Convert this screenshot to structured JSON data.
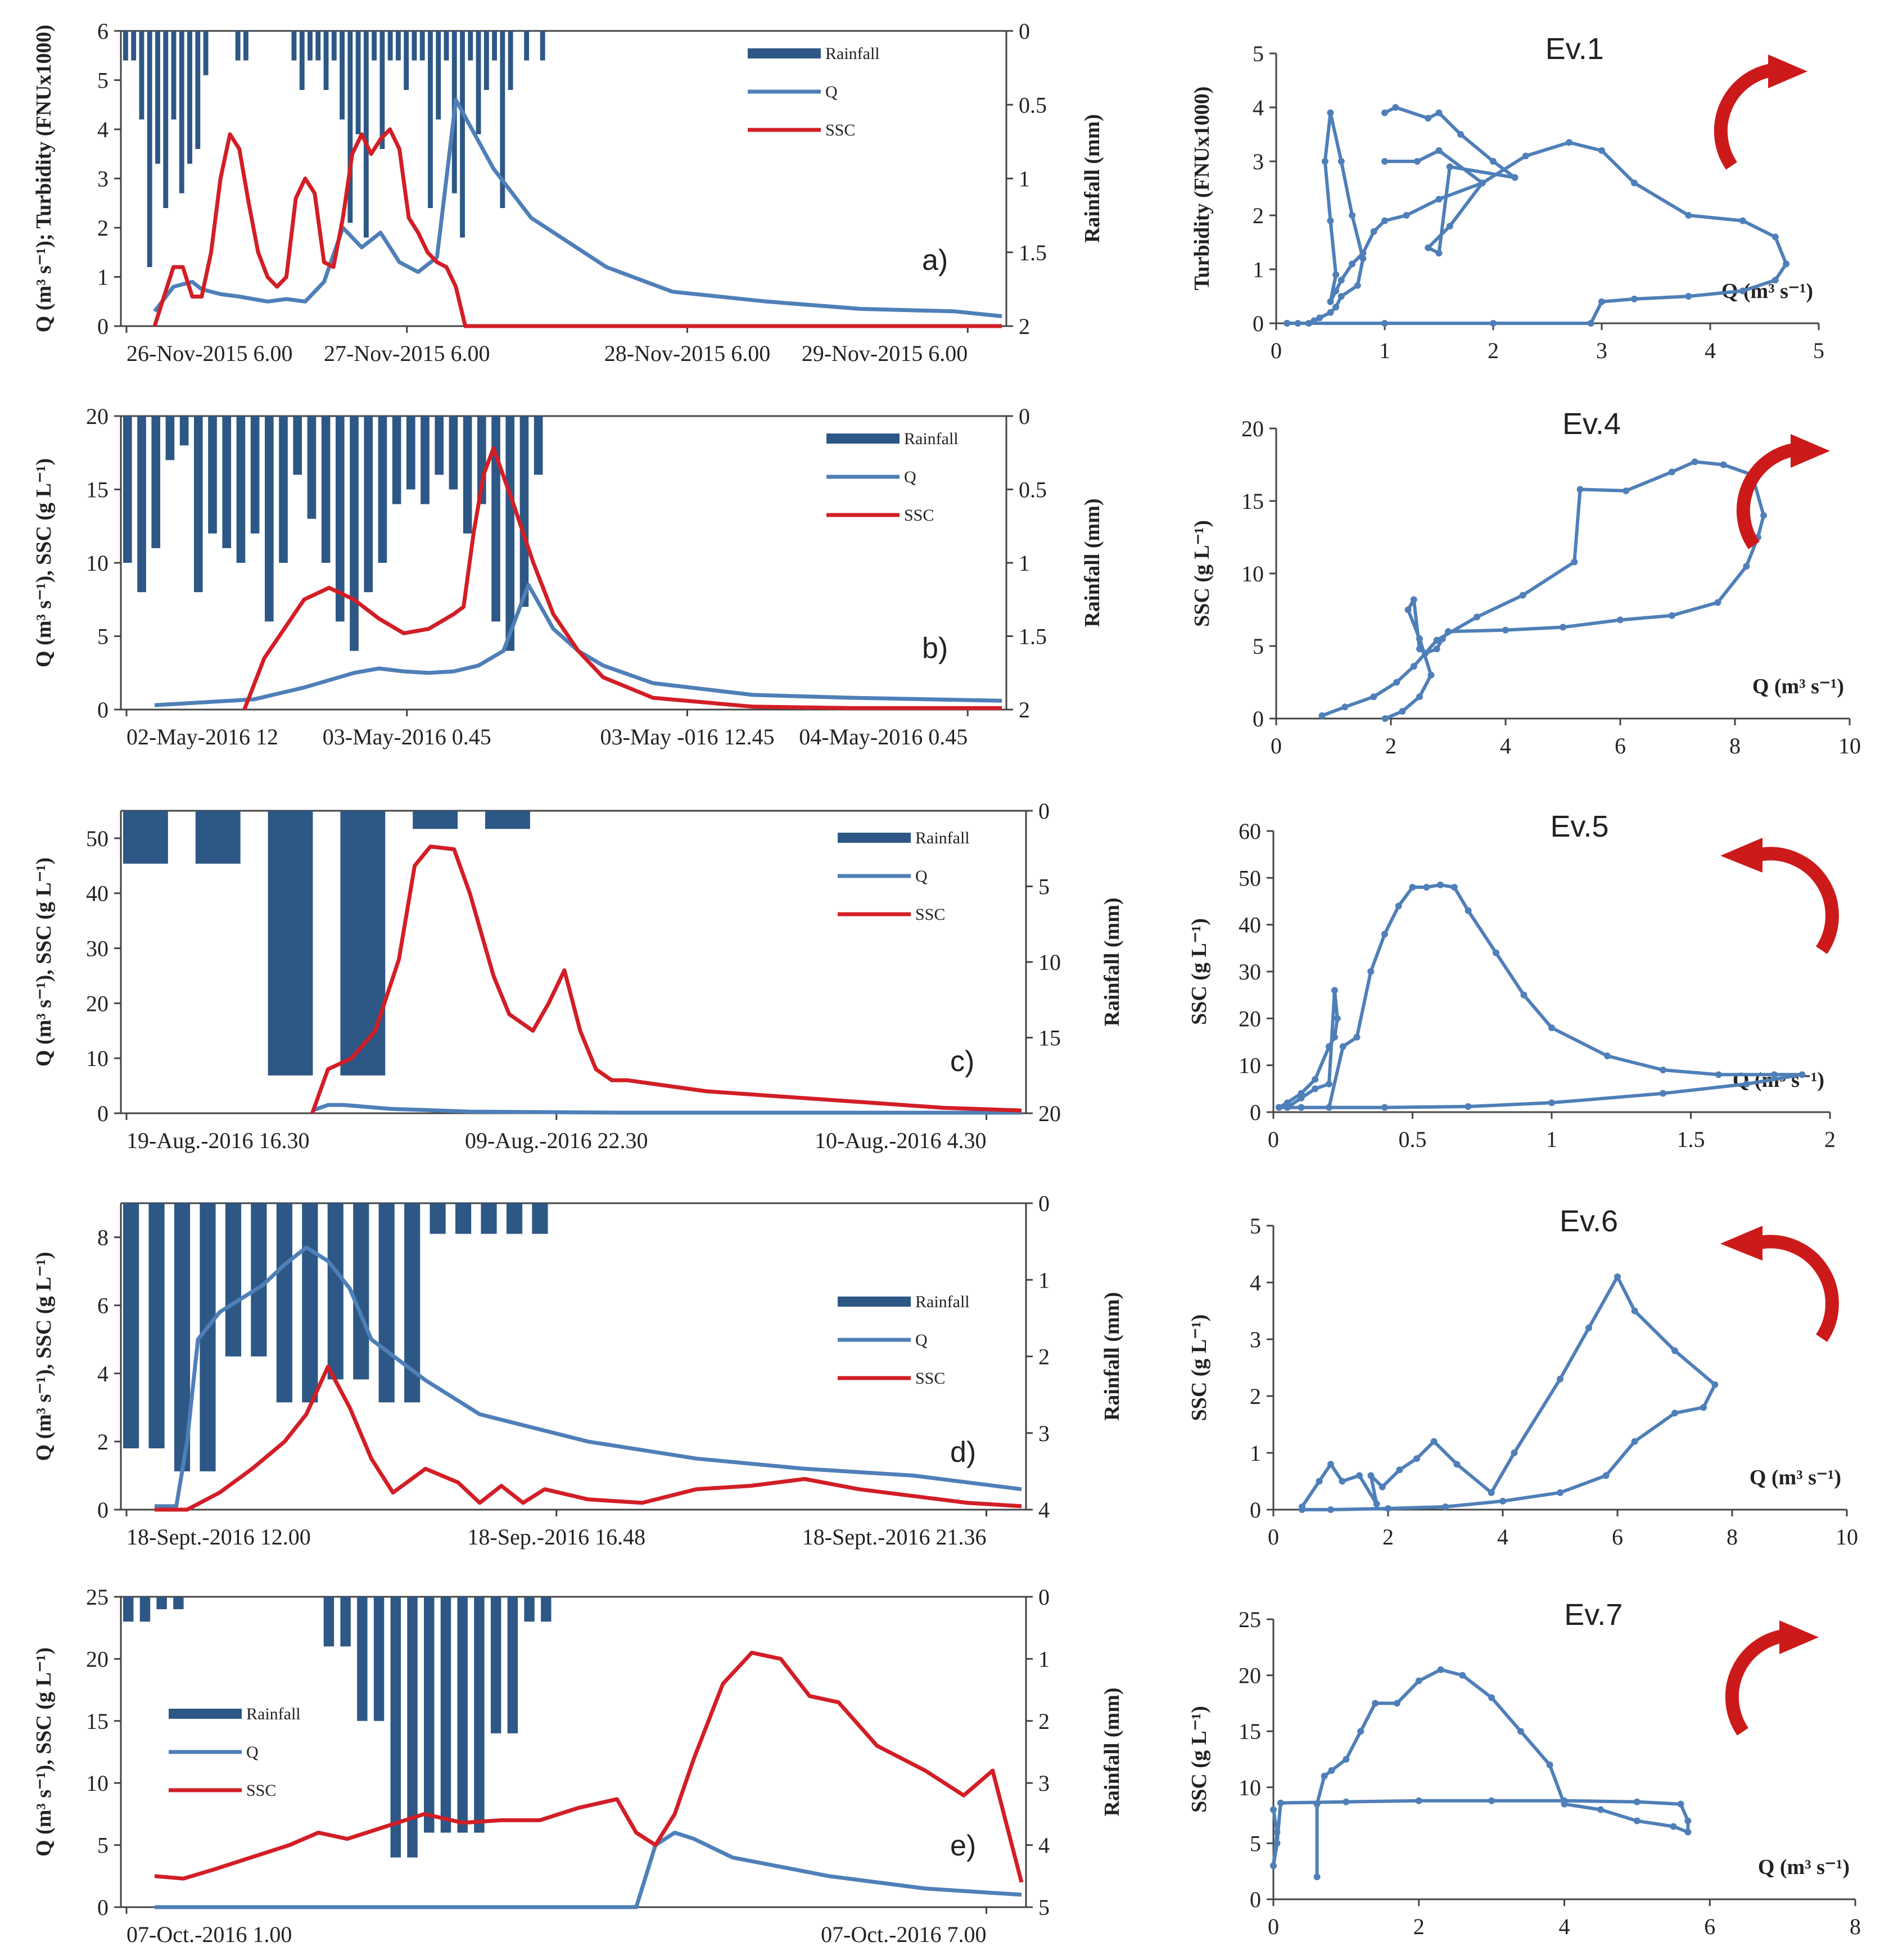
{
  "colors": {
    "rain": "#2d5785",
    "q": "#4f7fb8",
    "ssc": "#d21e26",
    "arrow": "#cc1a1a",
    "axis": "#444444"
  },
  "chart_data": [
    {
      "type": "bar+line",
      "panel_label": "a)",
      "ylabel": "Q (m³ s⁻¹); Turbidity (FNUx1000)",
      "y2label": "Rainfall (mm)",
      "ylim": [
        0,
        6
      ],
      "y2lim": [
        0,
        2
      ],
      "yticks": [
        "0",
        "1",
        "2",
        "3",
        "4",
        "5",
        "6"
      ],
      "y2ticks": [
        "0",
        "0.5",
        "1",
        "1.5",
        "2"
      ],
      "xticks": [
        "26-Nov-2015 6.00",
        "27-Nov-2015 6.00",
        "28-Nov-2015 6.00",
        "29-Nov-2015 6.00"
      ],
      "legend": [
        "Rainfall",
        "Q",
        "SSC"
      ],
      "rain": [
        0.2,
        0.2,
        0.6,
        1.6,
        0.9,
        1.2,
        0.6,
        1.1,
        0.9,
        0.8,
        0.3,
        0,
        0,
        0,
        0.2,
        0.2,
        0,
        0,
        0,
        0,
        0,
        0.2,
        0.4,
        0.2,
        0.2,
        0.4,
        0.2,
        0.6,
        1.3,
        0.7,
        1.4,
        0.2,
        0.8,
        0.2,
        0.2,
        0.4,
        0.2,
        0.2,
        1.2,
        0.6,
        0.2,
        1.1,
        1.4,
        0.2,
        0.7,
        0.4,
        0.2,
        1.2,
        0.4,
        0,
        0.2,
        0,
        0.2
      ],
      "q_x": [
        0,
        4,
        8,
        10,
        14,
        18,
        24,
        28,
        32,
        36,
        40,
        44,
        48,
        52,
        56,
        60,
        64,
        72,
        80,
        96,
        110,
        130,
        150,
        170,
        180
      ],
      "q": [
        0.3,
        0.8,
        0.9,
        0.75,
        0.65,
        0.6,
        0.5,
        0.55,
        0.5,
        0.9,
        2.0,
        1.6,
        1.9,
        1.3,
        1.1,
        1.4,
        4.6,
        3.2,
        2.2,
        1.2,
        0.7,
        0.5,
        0.35,
        0.3,
        0.2
      ],
      "ssc_x": [
        0,
        2,
        4,
        6,
        8,
        10,
        12,
        14,
        16,
        18,
        20,
        22,
        24,
        26,
        28,
        30,
        32,
        34,
        36,
        38,
        40,
        42,
        44,
        46,
        48,
        50,
        52,
        54,
        56,
        58,
        60,
        62,
        64,
        66,
        180
      ],
      "ssc": [
        0,
        0.6,
        1.2,
        1.2,
        0.6,
        0.6,
        1.5,
        3.0,
        3.9,
        3.6,
        2.5,
        1.5,
        1.0,
        0.8,
        1.0,
        2.6,
        3.0,
        2.7,
        1.3,
        1.2,
        2.2,
        3.5,
        3.9,
        3.5,
        3.8,
        4.0,
        3.6,
        2.2,
        1.9,
        1.5,
        1.3,
        1.2,
        0.8,
        0.0,
        0.0
      ]
    },
    {
      "type": "bar+line",
      "panel_label": "b)",
      "ylabel": "Q (m³ s⁻¹), SSC (g L⁻¹)",
      "y2label": "Rainfall (mm)",
      "ylim": [
        0,
        20
      ],
      "y2lim": [
        0,
        2
      ],
      "yticks": [
        "0",
        "5",
        "10",
        "15",
        "20"
      ],
      "y2ticks": [
        "0",
        "0.5",
        "1",
        "1.5",
        "2"
      ],
      "xticks": [
        "02-May-2016 12",
        "03-May-2016 0.45",
        "03-May -016 12.45",
        "04-May-2016 0.45"
      ],
      "legend": [
        "Rainfall",
        "Q",
        "SSC"
      ],
      "rain": [
        1.0,
        1.2,
        0.9,
        0.3,
        0.2,
        1.2,
        0.8,
        0.9,
        1.0,
        0.8,
        1.4,
        1.0,
        0.4,
        0.7,
        1.0,
        1.4,
        1.6,
        1.2,
        1.0,
        0.6,
        0.5,
        0.6,
        0.4,
        0.5,
        0.8,
        0.6,
        1.4,
        1.6,
        1.3,
        0.4
      ],
      "q_x": [
        0,
        10,
        20,
        30,
        40,
        45,
        50,
        55,
        60,
        65,
        70,
        75,
        80,
        85,
        90,
        100,
        120,
        140,
        170
      ],
      "q": [
        0.3,
        0.5,
        0.7,
        1.5,
        2.5,
        2.8,
        2.6,
        2.5,
        2.6,
        3.0,
        4.0,
        8.5,
        5.5,
        4.0,
        3.0,
        1.8,
        1.0,
        0.8,
        0.6
      ],
      "ssc_x": [
        18,
        22,
        26,
        30,
        35,
        40,
        45,
        50,
        55,
        60,
        62,
        64,
        66,
        68,
        72,
        76,
        80,
        85,
        90,
        100,
        120,
        140,
        160,
        170
      ],
      "ssc": [
        0,
        3.5,
        5.5,
        7.5,
        8.3,
        7.5,
        6.2,
        5.2,
        5.5,
        6.5,
        7.0,
        12.0,
        16.0,
        17.8,
        14.0,
        10.0,
        6.5,
        4.0,
        2.2,
        0.8,
        0.2,
        0.1,
        0.1,
        0.1
      ]
    },
    {
      "type": "bar+line",
      "panel_label": "c)",
      "ylabel": "Q (m³ s⁻¹), SSC (g L⁻¹)",
      "y2label": "Rainfall (mm)",
      "ylim": [
        0,
        55
      ],
      "y2lim": [
        0,
        20
      ],
      "yticks": [
        "0",
        "10",
        "20",
        "30",
        "40",
        "50"
      ],
      "y2ticks": [
        "0",
        "5",
        "10",
        "15",
        "20"
      ],
      "xticks": [
        "19-Aug.-2016 16.30",
        "09-Aug.-2016 22.30",
        "10-Aug.-2016 4.30"
      ],
      "legend": [
        "Rainfall",
        "Q",
        "SSC"
      ],
      "rain": [
        3.5,
        3.5,
        17.5,
        17.5,
        1.2,
        1.2
      ],
      "q_x": [
        40,
        44,
        48,
        60,
        80,
        120,
        160,
        220
      ],
      "q": [
        0.5,
        1.5,
        1.5,
        0.8,
        0.3,
        0.1,
        0.1,
        0.1
      ],
      "ssc_x": [
        40,
        44,
        50,
        56,
        62,
        66,
        70,
        76,
        80,
        86,
        90,
        96,
        100,
        104,
        108,
        112,
        116,
        120,
        130,
        140,
        160,
        180,
        200,
        220
      ],
      "ssc": [
        0,
        8,
        10,
        15,
        28,
        45,
        48.5,
        48,
        40,
        25,
        18,
        15,
        20,
        26,
        15,
        8,
        6,
        6,
        5,
        4,
        3,
        2,
        1,
        0.5
      ]
    },
    {
      "type": "bar+line",
      "panel_label": "d)",
      "ylabel": "Q (m³ s⁻¹), SSC (g L⁻¹)",
      "y2label": "Rainfall (mm)",
      "ylim": [
        0,
        9
      ],
      "y2lim": [
        0,
        4
      ],
      "yticks": [
        "0",
        "2",
        "4",
        "6",
        "8"
      ],
      "y2ticks": [
        "0",
        "1",
        "2",
        "3",
        "4"
      ],
      "xticks": [
        "18-Sept.-2016 12.00",
        "18-Sep.-2016 16.48",
        "18-Sept.-2016 21.36"
      ],
      "legend": [
        "Rainfall",
        "Q",
        "SSC"
      ],
      "rain": [
        3.2,
        3.2,
        3.5,
        3.5,
        2.0,
        2.0,
        2.6,
        2.6,
        2.3,
        2.3,
        2.6,
        2.6,
        0.4,
        0.4,
        0.4,
        0.4,
        0.4
      ],
      "q_x": [
        0,
        4,
        6,
        8,
        12,
        16,
        20,
        24,
        28,
        32,
        36,
        40,
        50,
        60,
        80,
        100,
        120,
        140,
        160
      ],
      "q": [
        0.1,
        0.1,
        2.0,
        5.0,
        5.8,
        6.2,
        6.6,
        7.2,
        7.7,
        7.3,
        6.5,
        5.0,
        3.8,
        2.8,
        2.0,
        1.5,
        1.2,
        1.0,
        0.6
      ],
      "ssc_x": [
        0,
        6,
        12,
        18,
        24,
        28,
        32,
        36,
        40,
        44,
        50,
        56,
        60,
        64,
        68,
        72,
        80,
        90,
        100,
        110,
        120,
        130,
        140,
        150,
        160
      ],
      "ssc": [
        0,
        0,
        0.5,
        1.2,
        2.0,
        2.8,
        4.2,
        3.0,
        1.5,
        0.5,
        1.2,
        0.8,
        0.2,
        0.7,
        0.2,
        0.6,
        0.3,
        0.2,
        0.6,
        0.7,
        0.9,
        0.6,
        0.4,
        0.2,
        0.1
      ]
    },
    {
      "type": "bar+line",
      "panel_label": "e)",
      "ylabel": "Q (m³ s⁻¹), SSC (g L⁻¹)",
      "y2label": "Rainfall (mm)",
      "ylim": [
        0,
        25
      ],
      "y2lim": [
        0,
        5
      ],
      "yticks": [
        "0",
        "5",
        "10",
        "15",
        "20",
        "25"
      ],
      "y2ticks": [
        "0",
        "1",
        "2",
        "3",
        "4",
        "5"
      ],
      "xticks": [
        "07-Oct.-2016 1.00",
        "07-Oct.-2016 7.00"
      ],
      "legend": [
        "Rainfall",
        "Q",
        "SSC"
      ],
      "rain": [
        0.4,
        0.4,
        0.2,
        0.2,
        0,
        0,
        0,
        0,
        0,
        0,
        0,
        0,
        0.8,
        0.8,
        2.0,
        2.0,
        4.2,
        4.2,
        3.8,
        3.8,
        3.8,
        3.8,
        2.2,
        2.2,
        0.4,
        0.4
      ],
      "q_x": [
        0,
        40,
        80,
        100,
        104,
        108,
        112,
        120,
        140,
        160,
        180
      ],
      "q": [
        0,
        0,
        0,
        0,
        5,
        6,
        5.5,
        4,
        2.5,
        1.5,
        1
      ],
      "ssc_x": [
        0,
        6,
        12,
        20,
        28,
        34,
        40,
        48,
        56,
        64,
        72,
        80,
        88,
        96,
        100,
        104,
        108,
        112,
        118,
        124,
        130,
        136,
        142,
        150,
        160,
        168,
        174,
        180
      ],
      "ssc": [
        2.5,
        2.3,
        3.0,
        4.0,
        5.0,
        6.0,
        5.5,
        6.5,
        7.5,
        6.8,
        7.0,
        7.0,
        8.0,
        8.7,
        6.0,
        5.0,
        7.5,
        12,
        18,
        20.5,
        20,
        17,
        16.5,
        13,
        11,
        9,
        11,
        2
      ]
    },
    {
      "type": "hysteresis",
      "title": "Ev.1",
      "xlabel": "Q (m³ s⁻¹)",
      "ylabel": "Turbidity (FNUx1000)",
      "xlim": [
        0,
        5
      ],
      "ylim": [
        0,
        5
      ],
      "xticks": [
        "0",
        "1",
        "2",
        "3",
        "4",
        "5"
      ],
      "yticks": [
        "0",
        "1",
        "2",
        "3",
        "4",
        "5"
      ],
      "x": [
        0.1,
        1,
        2,
        2.9,
        3.0,
        3.3,
        3.8,
        4.3,
        4.6,
        4.7,
        4.6,
        4.3,
        3.8,
        3.3,
        3.0,
        2.7,
        2.3,
        1.9,
        1.5,
        1.2,
        1.0,
        0.9,
        0.8,
        0.7,
        0.6,
        0.55,
        0.5,
        0.55,
        0.5,
        0.45,
        0.5,
        0.6,
        0.7,
        0.8,
        0.75,
        0.6,
        0.55,
        0.5,
        0.4,
        0.35,
        0.3,
        0.2,
        0.1
      ],
      "y": [
        0,
        0,
        0,
        0,
        0.4,
        0.45,
        0.5,
        0.6,
        0.8,
        1.1,
        1.6,
        1.9,
        2.0,
        2.6,
        3.2,
        3.35,
        3.1,
        2.6,
        2.3,
        2.0,
        1.9,
        1.7,
        1.3,
        1.1,
        0.8,
        0.6,
        0.4,
        0.9,
        1.9,
        3.0,
        3.9,
        3.0,
        2.0,
        1.2,
        0.7,
        0.5,
        0.3,
        0.2,
        0.1,
        0.05,
        0,
        0,
        0
      ],
      "x2": [
        1.0,
        1.1,
        1.4,
        1.5,
        1.7,
        2.0,
        2.2,
        1.6,
        1.5,
        1.4,
        1.6,
        1.9,
        1.5,
        1.3,
        1.0
      ],
      "y2": [
        3.9,
        4.0,
        3.8,
        3.9,
        3.5,
        3.0,
        2.7,
        2.9,
        1.3,
        1.4,
        1.8,
        2.6,
        3.2,
        3.0,
        3.0
      ],
      "arrow": "clockwise"
    },
    {
      "type": "hysteresis",
      "title": "Ev.4",
      "xlabel": "Q (m³ s⁻¹)",
      "ylabel": "SSC (g L⁻¹)",
      "xlim": [
        0,
        10
      ],
      "ylim": [
        0,
        20
      ],
      "xticks": [
        "0",
        "2",
        "4",
        "6",
        "8",
        "10"
      ],
      "yticks": [
        "0",
        "5",
        "10",
        "15",
        "20"
      ],
      "x": [
        0.8,
        1.2,
        1.7,
        2.1,
        2.4,
        2.8,
        3.5,
        4.3,
        5.2,
        5.3,
        6.1,
        6.9,
        7.3,
        7.8,
        8.3,
        8.5,
        8.4,
        8.2,
        7.7,
        6.9,
        6.0,
        5.0,
        4.0,
        3.0,
        2.9,
        2.8,
        2.6,
        2.5,
        2.4,
        2.3,
        2.5,
        2.7,
        2.5,
        2.2,
        1.9
      ],
      "y": [
        0.2,
        0.8,
        1.5,
        2.5,
        3.6,
        5.4,
        7.0,
        8.5,
        10.8,
        15.8,
        15.7,
        17.0,
        17.7,
        17.5,
        16.8,
        14.0,
        12.5,
        10.5,
        8.0,
        7.1,
        6.8,
        6.3,
        6.1,
        6.0,
        5.5,
        4.8,
        4.5,
        4.8,
        8.2,
        7.5,
        5.5,
        3.0,
        1.5,
        0.5,
        0.0
      ],
      "arrow": "clockwise"
    },
    {
      "type": "hysteresis",
      "title": "Ev.5",
      "xlabel": "Q (m³ s⁻¹)",
      "ylabel": "SSC (g L⁻¹)",
      "xlim": [
        0,
        2
      ],
      "ylim": [
        0,
        60
      ],
      "xticks": [
        "0",
        "0.5",
        "1",
        "1.5",
        "2"
      ],
      "yticks": [
        "0",
        "10",
        "20",
        "30",
        "40",
        "50",
        "60"
      ],
      "x": [
        0.02,
        0.1,
        0.2,
        0.25,
        0.3,
        0.35,
        0.4,
        0.45,
        0.5,
        0.55,
        0.6,
        0.65,
        0.7,
        0.8,
        0.9,
        1.0,
        1.2,
        1.4,
        1.6,
        1.8,
        1.9,
        1.7,
        1.4,
        1.0,
        0.7,
        0.4,
        0.1,
        0.05,
        0.1,
        0.15,
        0.2,
        0.22,
        0.23,
        0.22,
        0.2,
        0.15,
        0.1,
        0.05,
        0.02
      ],
      "y": [
        1,
        1,
        1,
        14,
        16,
        30,
        38,
        44,
        48,
        48,
        48.5,
        48,
        43,
        34,
        25,
        18,
        12,
        9,
        8,
        8,
        8,
        6,
        4,
        2,
        1.2,
        1,
        1,
        1,
        3,
        5,
        6,
        26,
        20,
        16,
        14,
        7,
        4,
        2,
        1
      ],
      "arrow": "counterclockwise"
    },
    {
      "type": "hysteresis",
      "title": "Ev.6",
      "xlabel": "Q (m³ s⁻¹)",
      "ylabel": "SSC (g L⁻¹)",
      "xlim": [
        0,
        10
      ],
      "ylim": [
        0,
        5
      ],
      "xticks": [
        "0",
        "2",
        "4",
        "6",
        "8",
        "10"
      ],
      "yticks": [
        "0",
        "1",
        "2",
        "3",
        "4",
        "5"
      ],
      "x": [
        0.5,
        0.8,
        1.0,
        1.2,
        1.5,
        1.8,
        1.7,
        1.9,
        2.2,
        2.5,
        2.8,
        3.2,
        3.8,
        4.2,
        5.0,
        5.5,
        6.0,
        6.3,
        7.0,
        7.7,
        7.5,
        7.0,
        6.3,
        5.8,
        5.0,
        4.0,
        3.0,
        2.0,
        1.0,
        0.5
      ],
      "y": [
        0.05,
        0.5,
        0.8,
        0.5,
        0.6,
        0.1,
        0.6,
        0.4,
        0.7,
        0.9,
        1.2,
        0.8,
        0.3,
        1.0,
        2.3,
        3.2,
        4.1,
        3.5,
        2.8,
        2.2,
        1.8,
        1.7,
        1.2,
        0.6,
        0.3,
        0.15,
        0.05,
        0.02,
        0.0,
        0.0
      ],
      "arrow": "counterclockwise"
    },
    {
      "type": "hysteresis",
      "title": "Ev.7",
      "xlabel": "Q (m³ s⁻¹)",
      "ylabel": "SSC (g L⁻¹)",
      "xlim": [
        0,
        8
      ],
      "ylim": [
        0,
        25
      ],
      "xticks": [
        "0",
        "2",
        "4",
        "6",
        "8"
      ],
      "yticks": [
        "0",
        "5",
        "10",
        "15",
        "20",
        "25"
      ],
      "x": [
        0.6,
        0.6,
        0.7,
        0.8,
        1.0,
        1.2,
        1.4,
        1.7,
        2.0,
        2.3,
        2.6,
        3.0,
        3.4,
        3.8,
        4.0,
        4.5,
        5.0,
        5.5,
        5.7,
        5.7,
        5.6,
        5.0,
        4.0,
        3.0,
        2.0,
        1.0,
        0.1,
        0.05,
        0.0,
        0.05,
        0.0
      ],
      "y": [
        2,
        8.5,
        11,
        11.5,
        12.5,
        15,
        17.5,
        17.5,
        19.5,
        20.5,
        20,
        18,
        15,
        12,
        8.5,
        8,
        7,
        6.5,
        6,
        7,
        8.5,
        8.7,
        8.8,
        8.8,
        8.8,
        8.7,
        8.6,
        5,
        3,
        6,
        8
      ],
      "arrow": "clockwise"
    }
  ]
}
